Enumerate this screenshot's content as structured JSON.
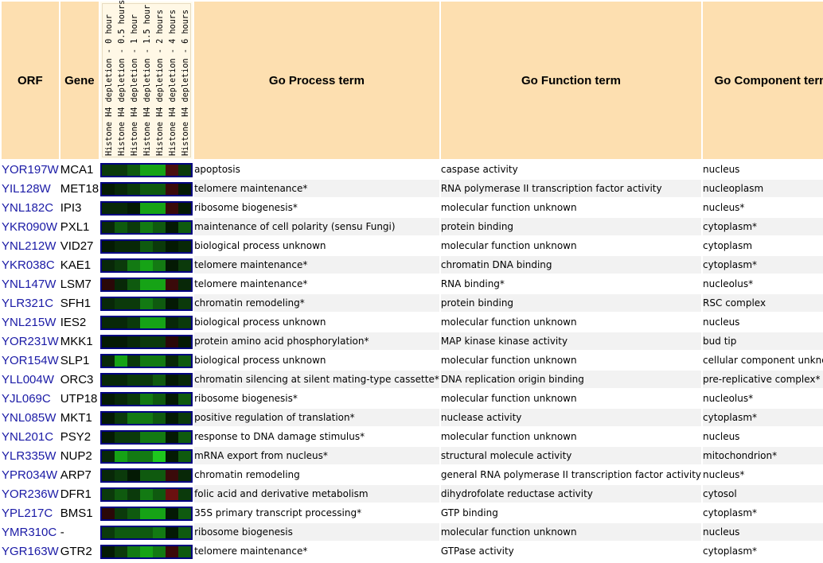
{
  "headers": {
    "orf": "ORF",
    "gene": "Gene",
    "process": "Go Process term",
    "function": "Go Function term",
    "component": "Go Component term"
  },
  "timepoints": [
    "Histone H4 depletion - 0 hour",
    "Histone H4 depletion - 0.5 hours",
    "Histone H4 depletion - 1 hour",
    "Histone H4 depletion - 1.5 hour",
    "Histone H4 depletion - 2 hours",
    "Histone H4 depletion - 4 hours",
    "Histone H4 depletion - 6 hours"
  ],
  "rows": [
    {
      "orf": "YOR197W",
      "gene": "MCA1",
      "process": "apoptosis",
      "function": "caspase activity",
      "component": "nucleus",
      "heat": [
        "#0b3a0b",
        "#0b3a0b",
        "#0f5a0f",
        "#16a316",
        "#16a316",
        "#4a1010",
        "#0b3a0b"
      ]
    },
    {
      "orf": "YIL128W",
      "gene": "MET18",
      "process": "telomere maintenance*",
      "function": "RNA polymerase II transcription factor activity",
      "component": "nucleoplasm",
      "heat": [
        "#041a04",
        "#082808",
        "#0b3a0b",
        "#0f5a0f",
        "#0f5a0f",
        "#3a0a0a",
        "#041a04"
      ]
    },
    {
      "orf": "YNL182C",
      "gene": "IPI3",
      "process": "ribosome biogenesis*",
      "function": "molecular function unknown",
      "component": "nucleus*",
      "heat": [
        "#082808",
        "#082808",
        "#041a04",
        "#16a316",
        "#16a316",
        "#3a0a0a",
        "#041a04"
      ]
    },
    {
      "orf": "YKR090W",
      "gene": "PXL1",
      "process": "maintenance of cell polarity (sensu Fungi)",
      "function": "protein binding",
      "component": "cytoplasm*",
      "heat": [
        "#082808",
        "#0f5a0f",
        "#0b3a0b",
        "#137a13",
        "#0f5a0f",
        "#041a04",
        "#0f5a0f"
      ]
    },
    {
      "orf": "YNL212W",
      "gene": "VID27",
      "process": "biological process unknown",
      "function": "molecular function unknown",
      "component": "cytoplasm",
      "heat": [
        "#041a04",
        "#082808",
        "#082808",
        "#0f5a0f",
        "#0b3a0b",
        "#041a04",
        "#082808"
      ]
    },
    {
      "orf": "YKR038C",
      "gene": "KAE1",
      "process": "telomere maintenance*",
      "function": "chromatin DNA binding",
      "component": "cytoplasm*",
      "heat": [
        "#082808",
        "#0b3a0b",
        "#137a13",
        "#16a316",
        "#137a13",
        "#041a04",
        "#0b3a0b"
      ]
    },
    {
      "orf": "YNL147W",
      "gene": "LSM7",
      "process": "telomere maintenance*",
      "function": "RNA binding*",
      "component": "nucleolus*",
      "heat": [
        "#2a0808",
        "#082808",
        "#0f5a0f",
        "#16a316",
        "#16a316",
        "#3a0a0a",
        "#082808"
      ]
    },
    {
      "orf": "YLR321C",
      "gene": "SFH1",
      "process": "chromatin remodeling*",
      "function": "protein binding",
      "component": "RSC complex",
      "heat": [
        "#082808",
        "#0b3a0b",
        "#0b3a0b",
        "#137a13",
        "#0f5a0f",
        "#041a04",
        "#0b3a0b"
      ]
    },
    {
      "orf": "YNL215W",
      "gene": "IES2",
      "process": "biological process unknown",
      "function": "molecular function unknown",
      "component": "nucleus",
      "heat": [
        "#082808",
        "#082808",
        "#0b3a0b",
        "#16a316",
        "#16a316",
        "#082808",
        "#0b3a0b"
      ]
    },
    {
      "orf": "YOR231W",
      "gene": "MKK1",
      "process": "protein amino acid phosphorylation*",
      "function": "MAP kinase kinase activity",
      "component": "bud tip",
      "heat": [
        "#041a04",
        "#041a04",
        "#082808",
        "#0b3a0b",
        "#0b3a0b",
        "#2a0808",
        "#041a04"
      ]
    },
    {
      "orf": "YOR154W",
      "gene": "SLP1",
      "process": "biological process unknown",
      "function": "molecular function unknown",
      "component": "cellular component unknown",
      "heat": [
        "#082808",
        "#16a316",
        "#0b3a0b",
        "#137a13",
        "#137a13",
        "#082808",
        "#0f5a0f"
      ]
    },
    {
      "orf": "YLL004W",
      "gene": "ORC3",
      "process": "chromatin silencing at silent mating-type cassette*",
      "function": "DNA replication origin binding",
      "component": "pre-replicative complex*",
      "heat": [
        "#082808",
        "#082808",
        "#0b3a0b",
        "#0b3a0b",
        "#0f5a0f",
        "#041a04",
        "#082808"
      ]
    },
    {
      "orf": "YJL069C",
      "gene": "UTP18",
      "process": "ribosome biogenesis*",
      "function": "molecular function unknown",
      "component": "nucleolus*",
      "heat": [
        "#041a04",
        "#082808",
        "#0b3a0b",
        "#137a13",
        "#0f5a0f",
        "#041a04",
        "#0f5a0f"
      ]
    },
    {
      "orf": "YNL085W",
      "gene": "MKT1",
      "process": "positive regulation of translation*",
      "function": "nuclease activity",
      "component": "cytoplasm*",
      "heat": [
        "#041a04",
        "#0b3a0b",
        "#137a13",
        "#137a13",
        "#0f5a0f",
        "#041a04",
        "#0b3a0b"
      ]
    },
    {
      "orf": "YNL201C",
      "gene": "PSY2",
      "process": "response to DNA damage stimulus*",
      "function": "molecular function unknown",
      "component": "nucleus",
      "heat": [
        "#041a04",
        "#0b3a0b",
        "#0b3a0b",
        "#137a13",
        "#137a13",
        "#041a04",
        "#0f5a0f"
      ]
    },
    {
      "orf": "YLR335W",
      "gene": "NUP2",
      "process": "mRNA export from nucleus*",
      "function": "structural molecule activity",
      "component": "mitochondrion*",
      "heat": [
        "#082808",
        "#16a316",
        "#137a13",
        "#137a13",
        "#1ec81e",
        "#041a04",
        "#0f5a0f"
      ]
    },
    {
      "orf": "YPR034W",
      "gene": "ARP7",
      "process": "chromatin remodeling",
      "function": "general RNA polymerase II transcription factor activity",
      "component": "nucleus*",
      "heat": [
        "#082808",
        "#0b3a0b",
        "#041a04",
        "#0f5a0f",
        "#0f5a0f",
        "#3a0a0a",
        "#082808"
      ]
    },
    {
      "orf": "YOR236W",
      "gene": "DFR1",
      "process": "folic acid and derivative metabolism",
      "function": "dihydrofolate reductase activity",
      "component": "cytosol",
      "heat": [
        "#0b3a0b",
        "#0f5a0f",
        "#0b3a0b",
        "#137a13",
        "#0f5a0f",
        "#6a1010",
        "#0b3a0b"
      ]
    },
    {
      "orf": "YPL217C",
      "gene": "BMS1",
      "process": "35S primary transcript processing*",
      "function": "GTP binding",
      "component": "cytoplasm*",
      "heat": [
        "#2a0808",
        "#0b3a0b",
        "#0f5a0f",
        "#16a316",
        "#16a316",
        "#041a04",
        "#0f5a0f"
      ]
    },
    {
      "orf": "YMR310C",
      "gene": "-",
      "process": "ribosome biogenesis",
      "function": "molecular function unknown",
      "component": "nucleus",
      "heat": [
        "#0b3a0b",
        "#0f5a0f",
        "#0f5a0f",
        "#0f5a0f",
        "#137a13",
        "#041a04",
        "#0f5a0f"
      ]
    },
    {
      "orf": "YGR163W",
      "gene": "GTR2",
      "process": "telomere maintenance*",
      "function": "GTPase activity",
      "component": "cytoplasm*",
      "heat": [
        "#041a04",
        "#0b3a0b",
        "#137a13",
        "#16a316",
        "#137a13",
        "#3a0a0a",
        "#0f5a0f"
      ]
    }
  ]
}
